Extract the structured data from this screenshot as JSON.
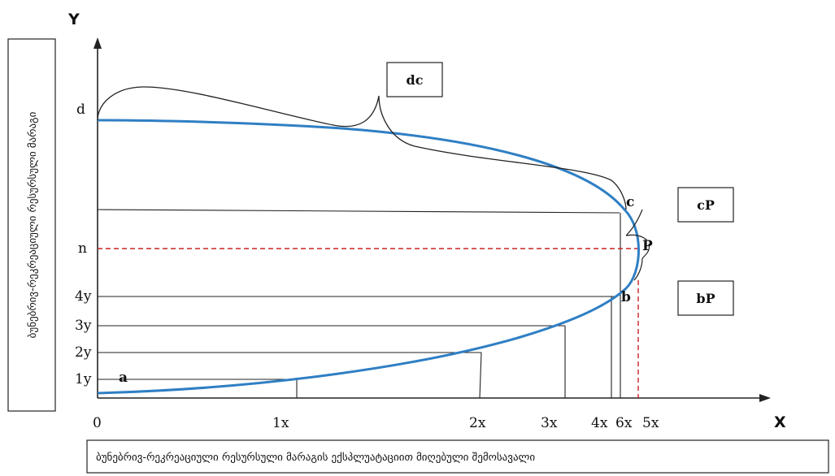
{
  "axes": {
    "x_label": "X",
    "y_label": "Y"
  },
  "y_axis_caption": "ბუნებრივ-რეკრეაციული რესურსული მარაგი",
  "x_axis_caption": "ბუნებრივ-რეკრეაციული რესურსული მარაგის ექსპლუატაციით მიღებული შემოსავალი",
  "x_ticks": [
    "0",
    "1x",
    "2x",
    "3x",
    "4x",
    "6x",
    "5x"
  ],
  "y_ticks": [
    "1y",
    "2y",
    "3y",
    "4y",
    "n",
    "d"
  ],
  "points": {
    "a": "a",
    "b": "b",
    "c": "c",
    "p": "P"
  },
  "boxes": {
    "dc": "dc",
    "cp": "cP",
    "bp": "bP"
  },
  "colors": {
    "curve": "#2f7fc4",
    "dashed": "#cc2222",
    "lines": "#222222"
  }
}
